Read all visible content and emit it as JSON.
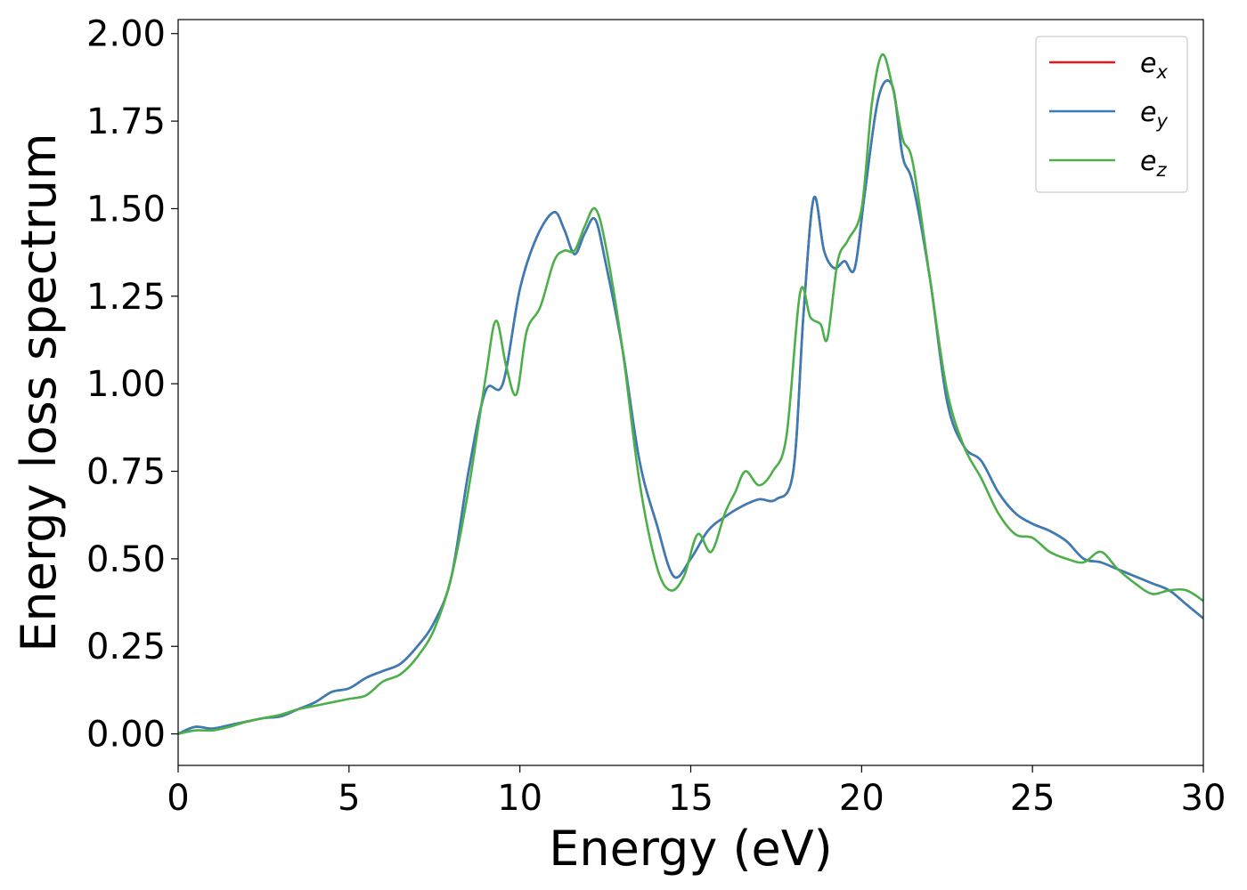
{
  "chart_data": {
    "type": "line",
    "title": "",
    "xlabel": "Energy (eV)",
    "ylabel": "Energy loss spectrum",
    "xlim": [
      0,
      30
    ],
    "ylim": [
      -0.09,
      2.04
    ],
    "xticks": [
      0,
      5,
      10,
      15,
      20,
      25,
      30
    ],
    "xtick_labels": [
      "0",
      "5",
      "10",
      "15",
      "20",
      "25",
      "30"
    ],
    "yticks": [
      0,
      0.25,
      0.5,
      0.75,
      1.0,
      1.25,
      1.5,
      1.75,
      2.0
    ],
    "ytick_labels": [
      "0.00",
      "0.25",
      "0.50",
      "0.75",
      "1.00",
      "1.25",
      "1.50",
      "1.75",
      "2.00"
    ],
    "grid": false,
    "legend_position": "top-right",
    "series": [
      {
        "name": "e",
        "subscript": "x",
        "color": "#e41a1c",
        "x": [
          0,
          0.5,
          1,
          1.5,
          2,
          2.5,
          3,
          3.5,
          4,
          4.5,
          5,
          5.5,
          6,
          6.5,
          7,
          7.5,
          8,
          8.5,
          9,
          9.5,
          10,
          10.5,
          11,
          11.3,
          11.6,
          11.9,
          12.2,
          12.5,
          13,
          13.5,
          14,
          14.5,
          15,
          15.5,
          16,
          16.5,
          17,
          17.5,
          18,
          18.3,
          18.6,
          18.9,
          19.2,
          19.5,
          19.8,
          20.1,
          20.5,
          20.9,
          21.2,
          21.5,
          22,
          22.5,
          23,
          23.5,
          24,
          24.5,
          25,
          25.5,
          26,
          26.5,
          27,
          27.5,
          28,
          28.5,
          29,
          29.5,
          30
        ],
        "y": [
          0,
          0.02,
          0.015,
          0.025,
          0.035,
          0.045,
          0.05,
          0.07,
          0.09,
          0.12,
          0.13,
          0.16,
          0.18,
          0.2,
          0.25,
          0.32,
          0.45,
          0.75,
          0.98,
          1.0,
          1.27,
          1.42,
          1.49,
          1.44,
          1.37,
          1.43,
          1.47,
          1.35,
          1.1,
          0.78,
          0.6,
          0.45,
          0.5,
          0.58,
          0.62,
          0.65,
          0.67,
          0.67,
          0.75,
          1.2,
          1.53,
          1.38,
          1.33,
          1.35,
          1.33,
          1.55,
          1.82,
          1.85,
          1.65,
          1.57,
          1.3,
          0.95,
          0.82,
          0.78,
          0.69,
          0.63,
          0.6,
          0.58,
          0.55,
          0.5,
          0.49,
          0.47,
          0.45,
          0.43,
          0.41,
          0.37,
          0.33
        ]
      },
      {
        "name": "e",
        "subscript": "y",
        "color": "#377eb8",
        "x": [
          0,
          0.5,
          1,
          1.5,
          2,
          2.5,
          3,
          3.5,
          4,
          4.5,
          5,
          5.5,
          6,
          6.5,
          7,
          7.5,
          8,
          8.5,
          9,
          9.5,
          10,
          10.5,
          11,
          11.3,
          11.6,
          11.9,
          12.2,
          12.5,
          13,
          13.5,
          14,
          14.5,
          15,
          15.5,
          16,
          16.5,
          17,
          17.5,
          18,
          18.3,
          18.6,
          18.9,
          19.2,
          19.5,
          19.8,
          20.1,
          20.5,
          20.9,
          21.2,
          21.5,
          22,
          22.5,
          23,
          23.5,
          24,
          24.5,
          25,
          25.5,
          26,
          26.5,
          27,
          27.5,
          28,
          28.5,
          29,
          29.5,
          30
        ],
        "y": [
          0,
          0.02,
          0.015,
          0.025,
          0.035,
          0.045,
          0.05,
          0.07,
          0.09,
          0.12,
          0.13,
          0.16,
          0.18,
          0.2,
          0.25,
          0.32,
          0.45,
          0.75,
          0.98,
          1.0,
          1.27,
          1.42,
          1.49,
          1.44,
          1.37,
          1.43,
          1.47,
          1.35,
          1.1,
          0.78,
          0.6,
          0.45,
          0.5,
          0.58,
          0.62,
          0.65,
          0.67,
          0.67,
          0.75,
          1.2,
          1.53,
          1.38,
          1.33,
          1.35,
          1.33,
          1.55,
          1.82,
          1.85,
          1.65,
          1.57,
          1.3,
          0.95,
          0.82,
          0.78,
          0.69,
          0.63,
          0.6,
          0.58,
          0.55,
          0.5,
          0.49,
          0.47,
          0.45,
          0.43,
          0.41,
          0.37,
          0.33
        ]
      },
      {
        "name": "e",
        "subscript": "z",
        "color": "#4daf4a",
        "x": [
          0,
          0.5,
          1,
          1.5,
          2,
          2.5,
          3,
          3.5,
          4,
          4.5,
          5,
          5.5,
          6,
          6.5,
          7,
          7.5,
          8,
          8.5,
          9,
          9.3,
          9.6,
          9.9,
          10.2,
          10.6,
          11,
          11.3,
          11.6,
          11.9,
          12.2,
          12.5,
          13,
          13.5,
          14,
          14.4,
          14.8,
          15.2,
          15.6,
          16,
          16.3,
          16.6,
          17,
          17.4,
          17.8,
          18.2,
          18.5,
          18.8,
          19,
          19.3,
          19.6,
          20,
          20.3,
          20.6,
          20.9,
          21.2,
          21.5,
          22,
          22.5,
          23,
          23.5,
          24,
          24.5,
          25,
          25.5,
          26,
          26.5,
          27,
          27.5,
          28,
          28.5,
          29,
          29.5,
          30
        ],
        "y": [
          0,
          0.01,
          0.01,
          0.02,
          0.035,
          0.045,
          0.055,
          0.07,
          0.08,
          0.09,
          0.1,
          0.11,
          0.15,
          0.17,
          0.22,
          0.3,
          0.45,
          0.7,
          1.02,
          1.18,
          1.05,
          0.97,
          1.15,
          1.22,
          1.35,
          1.38,
          1.38,
          1.45,
          1.5,
          1.4,
          1.1,
          0.72,
          0.48,
          0.41,
          0.45,
          0.57,
          0.52,
          0.63,
          0.69,
          0.75,
          0.71,
          0.75,
          0.85,
          1.26,
          1.19,
          1.17,
          1.13,
          1.35,
          1.41,
          1.5,
          1.8,
          1.94,
          1.85,
          1.7,
          1.63,
          1.3,
          0.98,
          0.82,
          0.73,
          0.63,
          0.57,
          0.56,
          0.52,
          0.5,
          0.49,
          0.52,
          0.47,
          0.43,
          0.4,
          0.41,
          0.41,
          0.38
        ]
      }
    ]
  }
}
